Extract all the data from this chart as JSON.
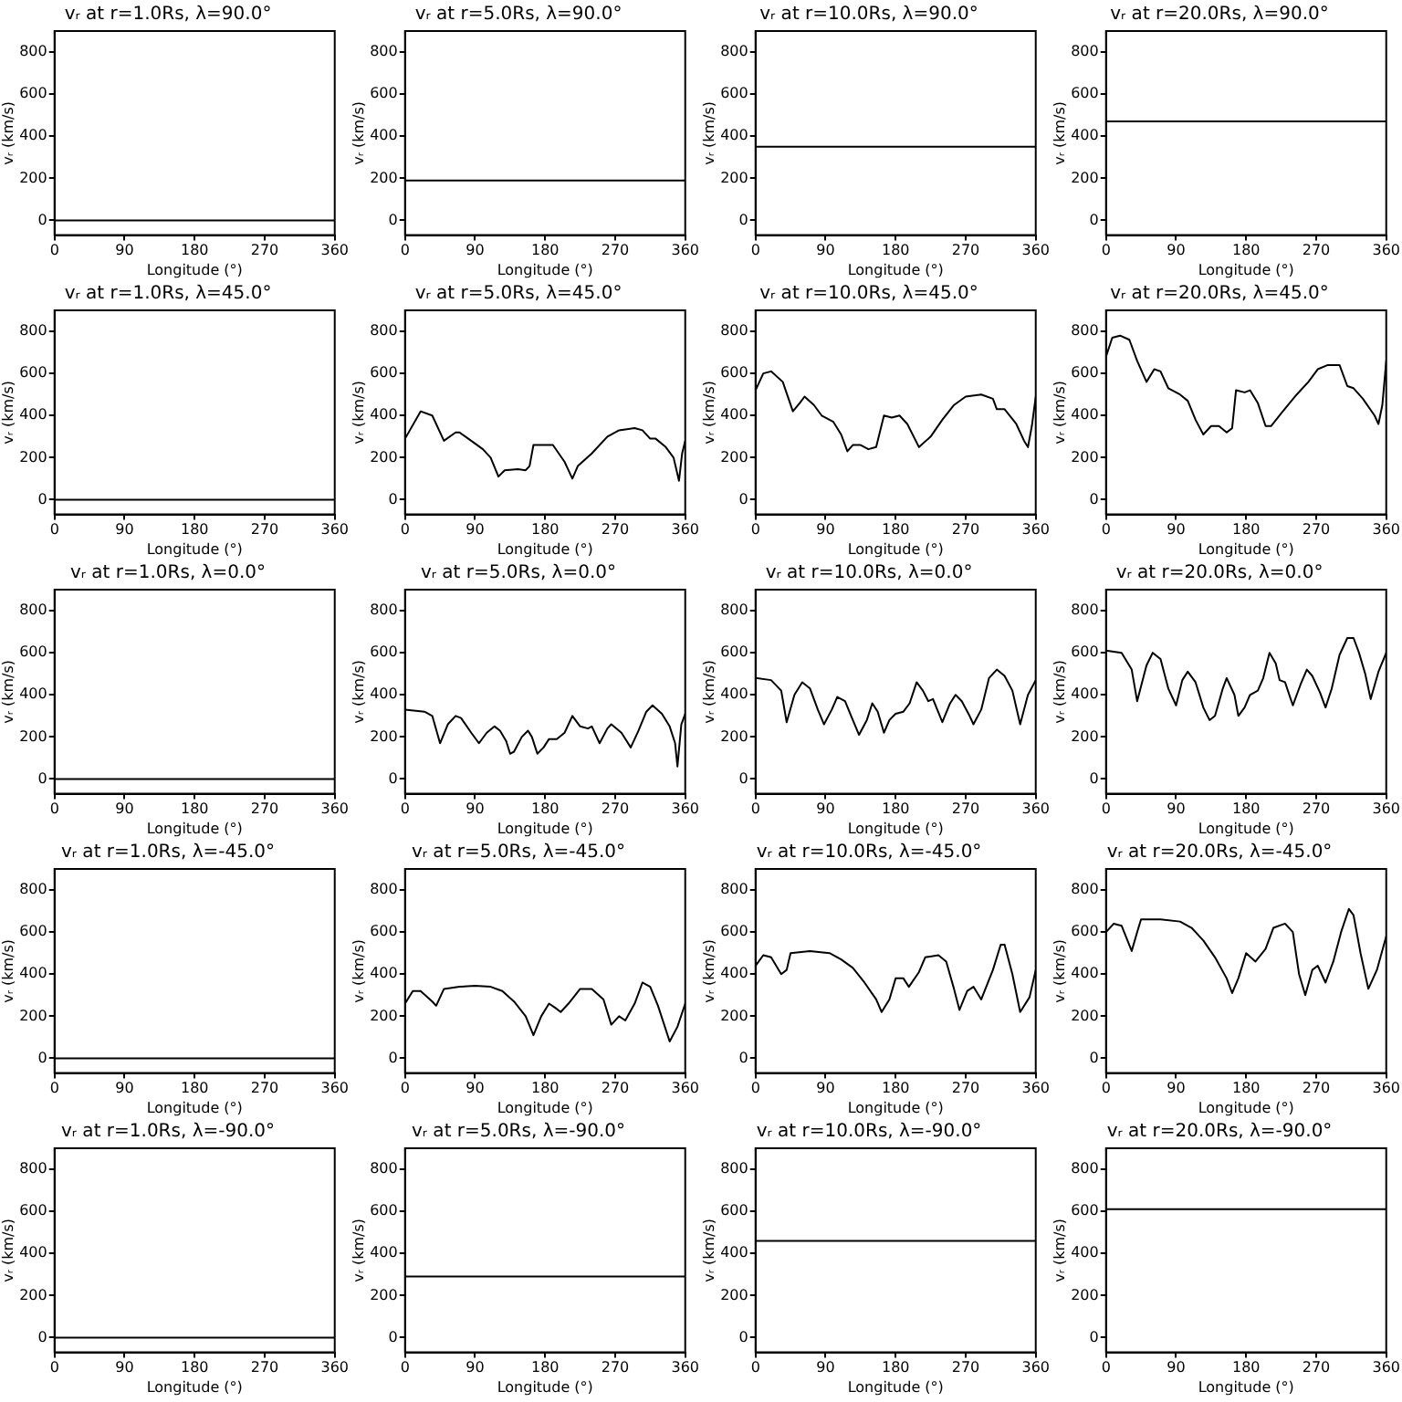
{
  "chart_data": [
    {
      "type": "line",
      "title": "vᵣ at r=1.0Rs, λ=90.0°",
      "xlabel": "Longitude (°)",
      "ylabel": "vᵣ (km/s)",
      "xlim": [
        0,
        360
      ],
      "xticks": [
        0,
        90,
        180,
        270,
        360
      ],
      "ylim": [
        -70,
        900
      ],
      "yticks": [
        0,
        200,
        400,
        600,
        800
      ],
      "color": "#000000",
      "x": [
        0,
        360
      ],
      "values": [
        0,
        0
      ]
    },
    {
      "type": "line",
      "title": "vᵣ at r=5.0Rs, λ=90.0°",
      "xlabel": "Longitude (°)",
      "ylabel": "vᵣ (km/s)",
      "xlim": [
        0,
        360
      ],
      "xticks": [
        0,
        90,
        180,
        270,
        360
      ],
      "ylim": [
        -70,
        900
      ],
      "yticks": [
        0,
        200,
        400,
        600,
        800
      ],
      "color": "#000000",
      "x": [
        0,
        360
      ],
      "values": [
        190,
        190
      ]
    },
    {
      "type": "line",
      "title": "vᵣ at r=10.0Rs, λ=90.0°",
      "xlabel": "Longitude (°)",
      "ylabel": "vᵣ (km/s)",
      "xlim": [
        0,
        360
      ],
      "xticks": [
        0,
        90,
        180,
        270,
        360
      ],
      "ylim": [
        -70,
        900
      ],
      "yticks": [
        0,
        200,
        400,
        600,
        800
      ],
      "color": "#000000",
      "x": [
        0,
        360
      ],
      "values": [
        350,
        350
      ]
    },
    {
      "type": "line",
      "title": "vᵣ at r=20.0Rs, λ=90.0°",
      "xlabel": "Longitude (°)",
      "ylabel": "vᵣ (km/s)",
      "xlim": [
        0,
        360
      ],
      "xticks": [
        0,
        90,
        180,
        270,
        360
      ],
      "ylim": [
        -70,
        900
      ],
      "yticks": [
        0,
        200,
        400,
        600,
        800
      ],
      "color": "#000000",
      "x": [
        0,
        360
      ],
      "values": [
        470,
        470
      ]
    },
    {
      "type": "line",
      "title": "vᵣ at r=1.0Rs, λ=45.0°",
      "xlabel": "Longitude (°)",
      "ylabel": "vᵣ (km/s)",
      "xlim": [
        0,
        360
      ],
      "xticks": [
        0,
        90,
        180,
        270,
        360
      ],
      "ylim": [
        -70,
        900
      ],
      "yticks": [
        0,
        200,
        400,
        600,
        800
      ],
      "color": "#000000",
      "x": [
        0,
        360
      ],
      "values": [
        0,
        0
      ]
    },
    {
      "type": "line",
      "title": "vᵣ at r=5.0Rs, λ=45.0°",
      "xlabel": "Longitude (°)",
      "ylabel": "vᵣ (km/s)",
      "xlim": [
        0,
        360
      ],
      "xticks": [
        0,
        90,
        180,
        270,
        360
      ],
      "ylim": [
        -70,
        900
      ],
      "yticks": [
        0,
        200,
        400,
        600,
        800
      ],
      "color": "#000000",
      "x": [
        0,
        20,
        35,
        50,
        65,
        70,
        85,
        100,
        110,
        120,
        128,
        145,
        155,
        160,
        165,
        180,
        190,
        205,
        215,
        222,
        240,
        260,
        275,
        295,
        305,
        315,
        322,
        335,
        345,
        352,
        356,
        360
      ],
      "values": [
        290,
        420,
        400,
        280,
        320,
        320,
        280,
        240,
        200,
        110,
        140,
        145,
        140,
        160,
        260,
        260,
        260,
        180,
        100,
        160,
        220,
        300,
        330,
        340,
        330,
        290,
        290,
        250,
        200,
        90,
        220,
        280
      ]
    },
    {
      "type": "line",
      "title": "vᵣ at r=10.0Rs, λ=45.0°",
      "xlabel": "Longitude (°)",
      "ylabel": "vᵣ (km/s)",
      "xlim": [
        0,
        360
      ],
      "xticks": [
        0,
        90,
        180,
        270,
        360
      ],
      "ylim": [
        -70,
        900
      ],
      "yticks": [
        0,
        200,
        400,
        600,
        800
      ],
      "color": "#000000",
      "x": [
        0,
        10,
        20,
        35,
        48,
        57,
        63,
        75,
        85,
        100,
        110,
        118,
        125,
        135,
        145,
        155,
        165,
        175,
        185,
        195,
        210,
        225,
        240,
        255,
        270,
        290,
        305,
        310,
        320,
        335,
        345,
        350,
        355,
        360
      ],
      "values": [
        520,
        600,
        610,
        560,
        420,
        460,
        490,
        450,
        400,
        370,
        310,
        230,
        260,
        260,
        240,
        250,
        400,
        390,
        400,
        360,
        250,
        300,
        380,
        450,
        490,
        500,
        480,
        430,
        430,
        360,
        280,
        250,
        350,
        490
      ]
    },
    {
      "type": "line",
      "title": "vᵣ at r=20.0Rs, λ=45.0°",
      "xlabel": "Longitude (°)",
      "ylabel": "vᵣ (km/s)",
      "xlim": [
        0,
        360
      ],
      "xticks": [
        0,
        90,
        180,
        270,
        360
      ],
      "ylim": [
        -70,
        900
      ],
      "yticks": [
        0,
        200,
        400,
        600,
        800
      ],
      "color": "#000000",
      "x": [
        0,
        8,
        18,
        30,
        40,
        52,
        62,
        70,
        80,
        95,
        105,
        115,
        125,
        135,
        145,
        155,
        162,
        167,
        178,
        185,
        195,
        205,
        212,
        225,
        245,
        260,
        272,
        285,
        300,
        310,
        318,
        330,
        345,
        350,
        355,
        360
      ],
      "values": [
        680,
        770,
        780,
        760,
        660,
        560,
        620,
        610,
        530,
        500,
        470,
        380,
        310,
        350,
        350,
        320,
        340,
        520,
        510,
        520,
        460,
        350,
        350,
        410,
        500,
        560,
        620,
        640,
        640,
        540,
        530,
        480,
        400,
        360,
        450,
        660
      ]
    },
    {
      "type": "line",
      "title": "vᵣ at r=1.0Rs, λ=0.0°",
      "xlabel": "Longitude (°)",
      "ylabel": "vᵣ (km/s)",
      "xlim": [
        0,
        360
      ],
      "xticks": [
        0,
        90,
        180,
        270,
        360
      ],
      "ylim": [
        -70,
        900
      ],
      "yticks": [
        0,
        200,
        400,
        600,
        800
      ],
      "color": "#000000",
      "x": [
        0,
        360
      ],
      "values": [
        0,
        0
      ]
    },
    {
      "type": "line",
      "title": "vᵣ at r=5.0Rs, λ=0.0°",
      "xlabel": "Longitude (°)",
      "ylabel": "vᵣ (km/s)",
      "xlim": [
        0,
        360
      ],
      "xticks": [
        0,
        90,
        180,
        270,
        360
      ],
      "ylim": [
        -70,
        900
      ],
      "yticks": [
        0,
        200,
        400,
        600,
        800
      ],
      "color": "#000000",
      "x": [
        0,
        25,
        35,
        45,
        55,
        65,
        72,
        85,
        95,
        105,
        115,
        122,
        130,
        135,
        140,
        150,
        158,
        163,
        170,
        178,
        185,
        195,
        205,
        215,
        225,
        235,
        240,
        250,
        260,
        265,
        278,
        290,
        300,
        310,
        318,
        330,
        340,
        347,
        350,
        355,
        360
      ],
      "values": [
        330,
        320,
        300,
        170,
        260,
        300,
        290,
        220,
        170,
        220,
        250,
        230,
        180,
        120,
        130,
        200,
        230,
        200,
        120,
        150,
        190,
        190,
        220,
        300,
        250,
        240,
        250,
        170,
        240,
        260,
        220,
        150,
        230,
        320,
        350,
        310,
        250,
        170,
        60,
        260,
        310
      ]
    },
    {
      "type": "line",
      "title": "vᵣ at r=10.0Rs, λ=0.0°",
      "xlabel": "Longitude (°)",
      "ylabel": "vᵣ (km/s)",
      "xlim": [
        0,
        360
      ],
      "xticks": [
        0,
        90,
        180,
        270,
        360
      ],
      "ylim": [
        -70,
        900
      ],
      "yticks": [
        0,
        200,
        400,
        600,
        800
      ],
      "color": "#000000",
      "x": [
        0,
        20,
        33,
        40,
        50,
        60,
        70,
        80,
        88,
        98,
        105,
        115,
        125,
        133,
        143,
        150,
        157,
        165,
        172,
        180,
        190,
        198,
        207,
        215,
        222,
        228,
        240,
        250,
        257,
        265,
        275,
        280,
        290,
        300,
        310,
        320,
        330,
        340,
        350,
        360
      ],
      "values": [
        480,
        470,
        420,
        270,
        400,
        460,
        430,
        330,
        260,
        330,
        390,
        370,
        280,
        210,
        280,
        360,
        320,
        220,
        280,
        310,
        320,
        360,
        460,
        420,
        370,
        380,
        270,
        360,
        400,
        370,
        300,
        260,
        330,
        480,
        520,
        490,
        420,
        260,
        400,
        470
      ]
    },
    {
      "type": "line",
      "title": "vᵣ at r=20.0Rs, λ=0.0°",
      "xlabel": "Longitude (°)",
      "ylabel": "vᵣ (km/s)",
      "xlim": [
        0,
        360
      ],
      "xticks": [
        0,
        90,
        180,
        270,
        360
      ],
      "ylim": [
        -70,
        900
      ],
      "yticks": [
        0,
        200,
        400,
        600,
        800
      ],
      "color": "#000000",
      "x": [
        0,
        20,
        33,
        40,
        52,
        60,
        70,
        80,
        90,
        98,
        105,
        115,
        125,
        133,
        140,
        150,
        155,
        165,
        170,
        178,
        185,
        195,
        202,
        210,
        218,
        223,
        230,
        240,
        250,
        258,
        265,
        275,
        282,
        290,
        300,
        310,
        318,
        325,
        333,
        340,
        350,
        360
      ],
      "values": [
        610,
        600,
        520,
        370,
        540,
        600,
        570,
        430,
        350,
        470,
        510,
        460,
        340,
        280,
        300,
        430,
        480,
        400,
        300,
        340,
        400,
        420,
        480,
        600,
        550,
        470,
        460,
        350,
        450,
        520,
        490,
        410,
        340,
        430,
        590,
        670,
        670,
        600,
        500,
        380,
        510,
        600
      ]
    },
    {
      "type": "line",
      "title": "vᵣ at r=1.0Rs, λ=-45.0°",
      "xlabel": "Longitude (°)",
      "ylabel": "vᵣ (km/s)",
      "xlim": [
        0,
        360
      ],
      "xticks": [
        0,
        90,
        180,
        270,
        360
      ],
      "ylim": [
        -70,
        900
      ],
      "yticks": [
        0,
        200,
        400,
        600,
        800
      ],
      "color": "#000000",
      "x": [
        0,
        360
      ],
      "values": [
        0,
        0
      ]
    },
    {
      "type": "line",
      "title": "vᵣ at r=5.0Rs, λ=-45.0°",
      "xlabel": "Longitude (°)",
      "ylabel": "vᵣ (km/s)",
      "xlim": [
        0,
        360
      ],
      "xticks": [
        0,
        90,
        180,
        270,
        360
      ],
      "ylim": [
        -70,
        900
      ],
      "yticks": [
        0,
        200,
        400,
        600,
        800
      ],
      "color": "#000000",
      "x": [
        0,
        10,
        20,
        35,
        40,
        50,
        70,
        90,
        110,
        125,
        140,
        155,
        165,
        175,
        185,
        193,
        200,
        210,
        225,
        240,
        255,
        265,
        275,
        283,
        295,
        305,
        315,
        325,
        340,
        350,
        360
      ],
      "values": [
        260,
        320,
        320,
        270,
        250,
        330,
        340,
        345,
        340,
        320,
        270,
        200,
        110,
        200,
        260,
        240,
        220,
        260,
        330,
        330,
        280,
        160,
        200,
        180,
        260,
        360,
        340,
        250,
        80,
        150,
        260
      ]
    },
    {
      "type": "line",
      "title": "vᵣ at r=10.0Rs, λ=-45.0°",
      "xlabel": "Longitude (°)",
      "ylabel": "vᵣ (km/s)",
      "xlim": [
        0,
        360
      ],
      "xticks": [
        0,
        90,
        180,
        270,
        360
      ],
      "ylim": [
        -70,
        900
      ],
      "yticks": [
        0,
        200,
        400,
        600,
        800
      ],
      "color": "#000000",
      "x": [
        0,
        10,
        20,
        33,
        40,
        45,
        70,
        95,
        110,
        125,
        140,
        155,
        162,
        172,
        180,
        190,
        197,
        210,
        218,
        235,
        245,
        255,
        262,
        272,
        280,
        290,
        305,
        315,
        320,
        330,
        340,
        352,
        360
      ],
      "values": [
        440,
        490,
        480,
        400,
        420,
        500,
        510,
        500,
        470,
        430,
        360,
        280,
        220,
        280,
        380,
        380,
        340,
        410,
        480,
        490,
        460,
        330,
        230,
        320,
        340,
        280,
        420,
        540,
        540,
        400,
        220,
        290,
        420
      ]
    },
    {
      "type": "line",
      "title": "vᵣ at r=20.0Rs, λ=-45.0°",
      "xlabel": "Longitude (°)",
      "ylabel": "vᵣ (km/s)",
      "xlim": [
        0,
        360
      ],
      "xticks": [
        0,
        90,
        180,
        270,
        360
      ],
      "ylim": [
        -70,
        900
      ],
      "yticks": [
        0,
        200,
        400,
        600,
        800
      ],
      "color": "#000000",
      "x": [
        0,
        10,
        20,
        33,
        40,
        45,
        70,
        95,
        110,
        125,
        140,
        155,
        162,
        170,
        180,
        192,
        205,
        215,
        230,
        240,
        248,
        256,
        265,
        272,
        282,
        292,
        302,
        312,
        318,
        327,
        337,
        348,
        360
      ],
      "values": [
        600,
        640,
        630,
        510,
        600,
        660,
        660,
        650,
        620,
        560,
        480,
        380,
        310,
        380,
        500,
        460,
        520,
        620,
        640,
        600,
        400,
        300,
        420,
        440,
        360,
        460,
        600,
        710,
        680,
        500,
        330,
        420,
        580
      ]
    },
    {
      "type": "line",
      "title": "vᵣ at r=1.0Rs, λ=-90.0°",
      "xlabel": "Longitude (°)",
      "ylabel": "vᵣ (km/s)",
      "xlim": [
        0,
        360
      ],
      "xticks": [
        0,
        90,
        180,
        270,
        360
      ],
      "ylim": [
        -70,
        900
      ],
      "yticks": [
        0,
        200,
        400,
        600,
        800
      ],
      "color": "#000000",
      "x": [
        0,
        360
      ],
      "values": [
        0,
        0
      ]
    },
    {
      "type": "line",
      "title": "vᵣ at r=5.0Rs, λ=-90.0°",
      "xlabel": "Longitude (°)",
      "ylabel": "vᵣ (km/s)",
      "xlim": [
        0,
        360
      ],
      "xticks": [
        0,
        90,
        180,
        270,
        360
      ],
      "ylim": [
        -70,
        900
      ],
      "yticks": [
        0,
        200,
        400,
        600,
        800
      ],
      "color": "#000000",
      "x": [
        0,
        360
      ],
      "values": [
        290,
        290
      ]
    },
    {
      "type": "line",
      "title": "vᵣ at r=10.0Rs, λ=-90.0°",
      "xlabel": "Longitude (°)",
      "ylabel": "vᵣ (km/s)",
      "xlim": [
        0,
        360
      ],
      "xticks": [
        0,
        90,
        180,
        270,
        360
      ],
      "ylim": [
        -70,
        900
      ],
      "yticks": [
        0,
        200,
        400,
        600,
        800
      ],
      "color": "#000000",
      "x": [
        0,
        360
      ],
      "values": [
        460,
        460
      ]
    },
    {
      "type": "line",
      "title": "vᵣ at r=20.0Rs, λ=-90.0°",
      "xlabel": "Longitude (°)",
      "ylabel": "vᵣ (km/s)",
      "xlim": [
        0,
        360
      ],
      "xticks": [
        0,
        90,
        180,
        270,
        360
      ],
      "ylim": [
        -70,
        900
      ],
      "yticks": [
        0,
        200,
        400,
        600,
        800
      ],
      "color": "#000000",
      "x": [
        0,
        360
      ],
      "values": [
        610,
        610
      ]
    }
  ]
}
